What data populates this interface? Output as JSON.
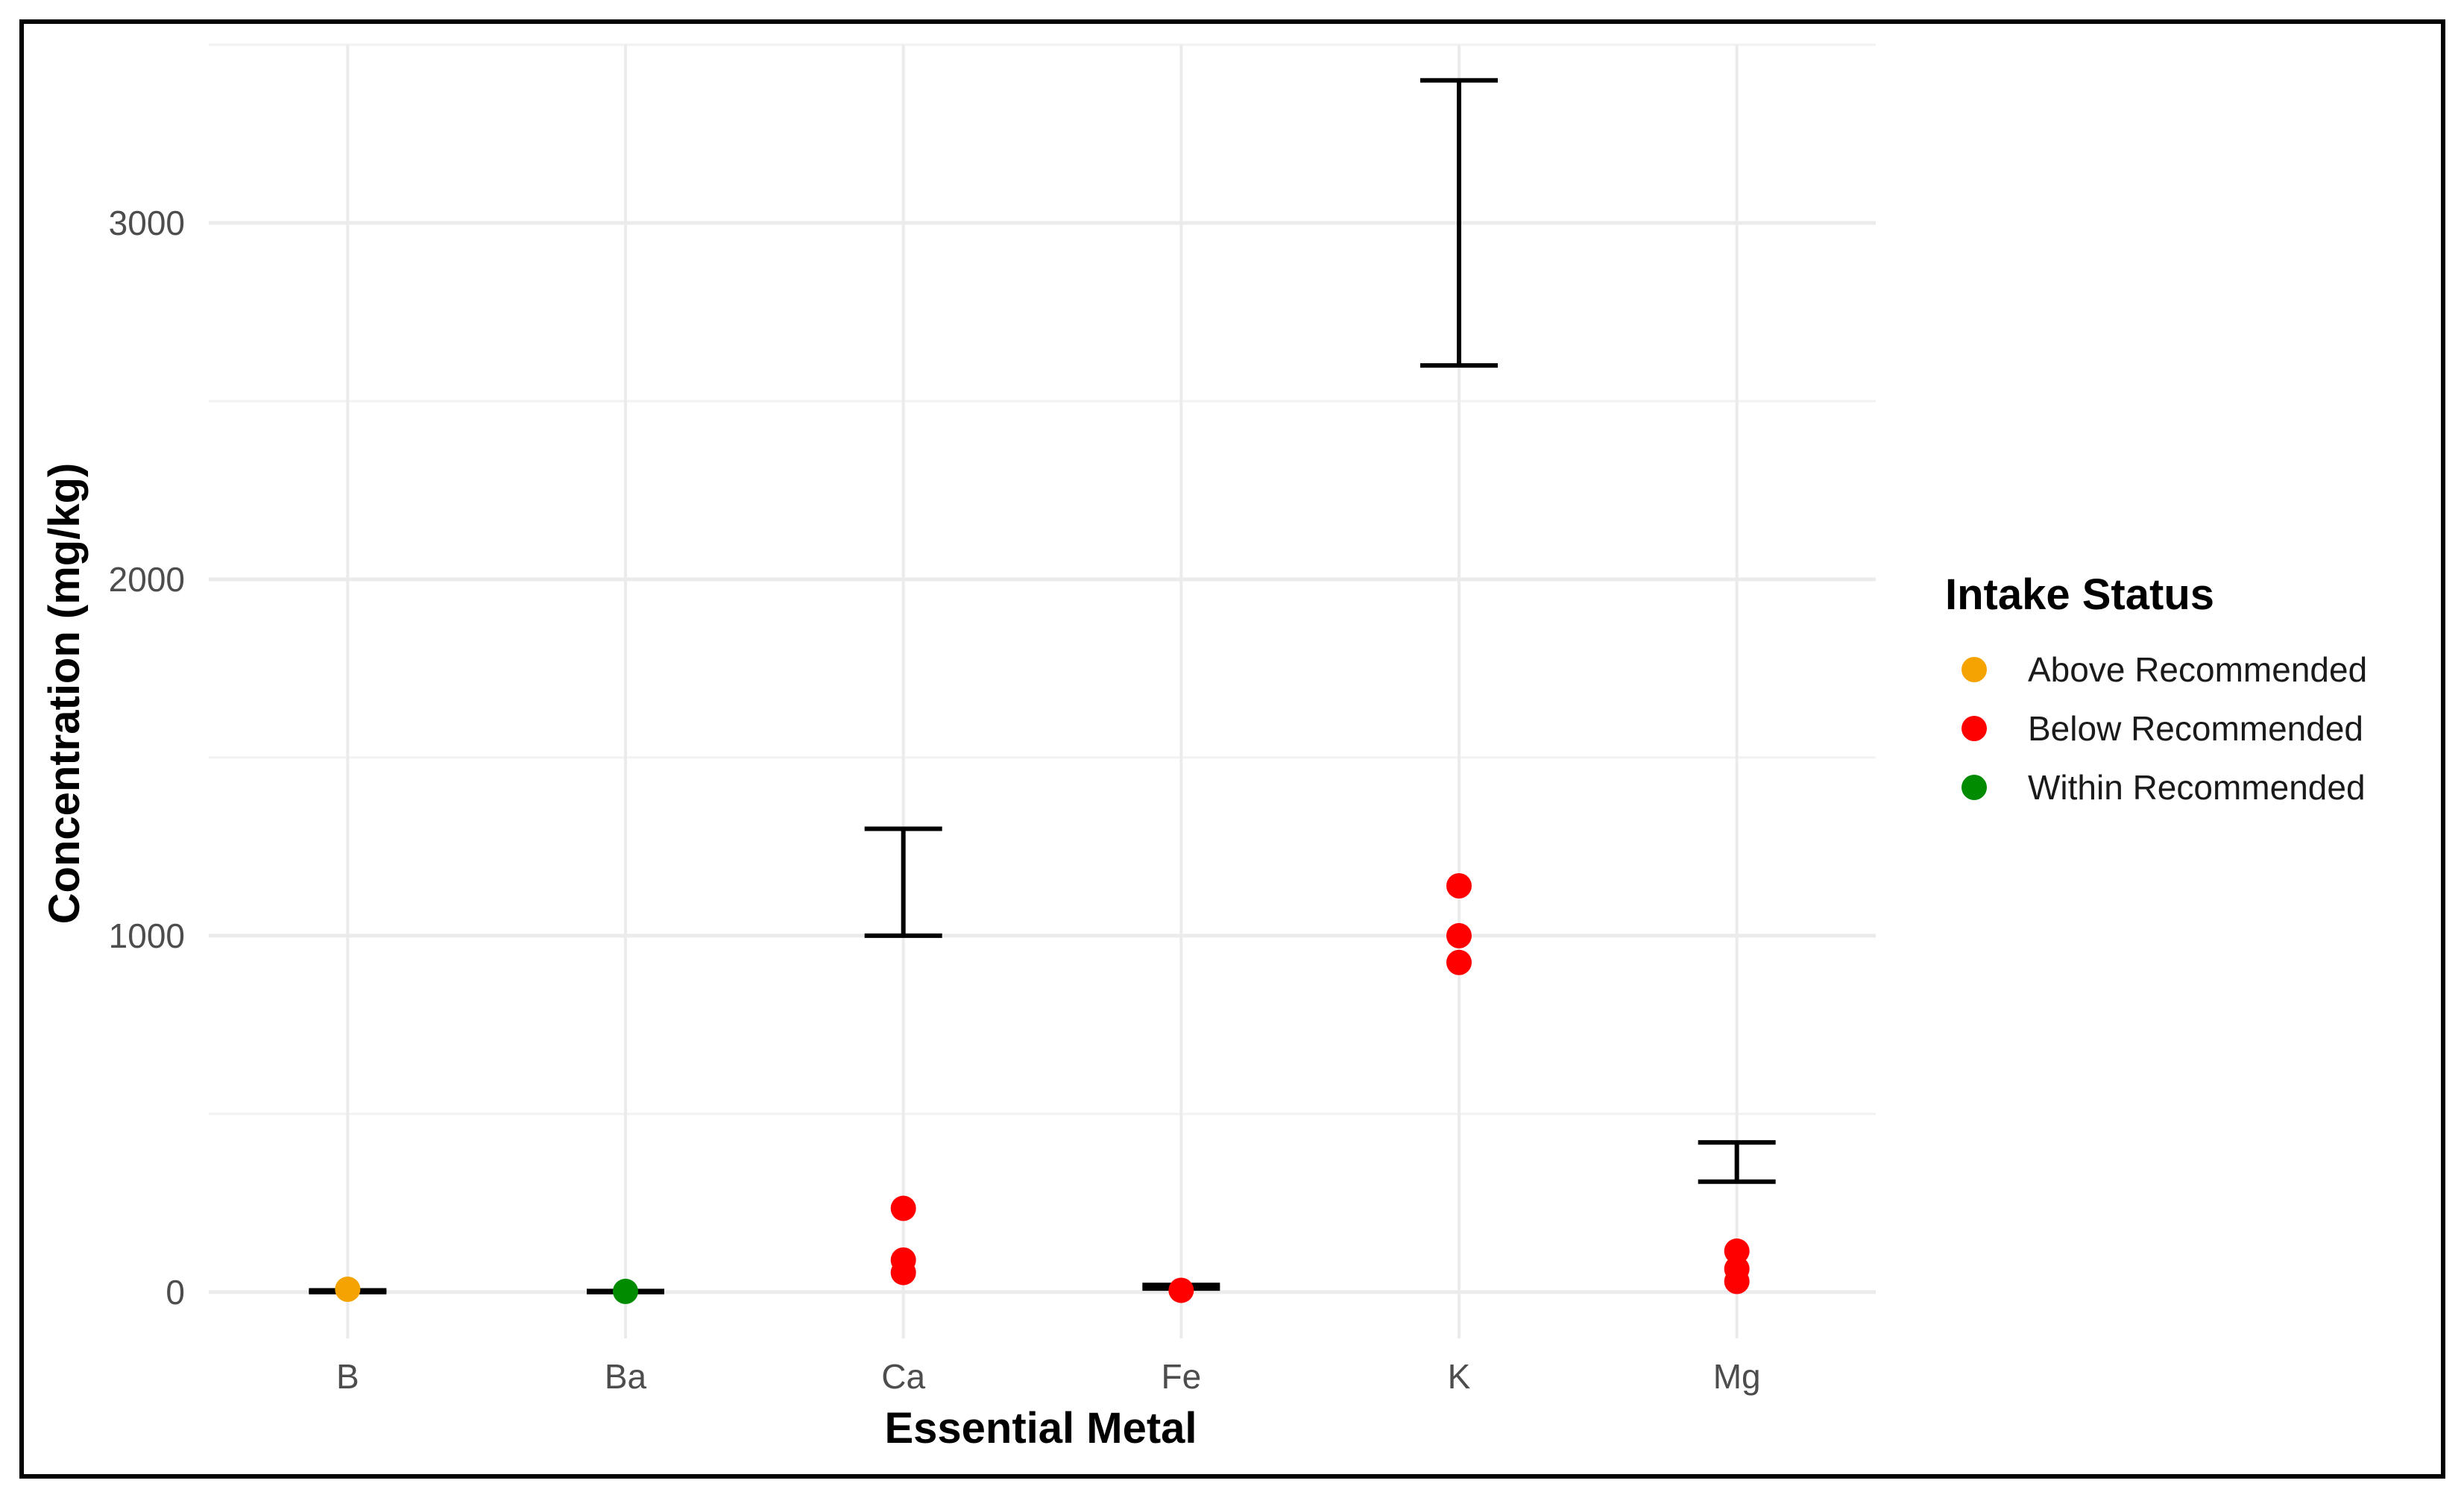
{
  "chart_data": {
    "type": "scatter",
    "title": "",
    "xlabel": "Essential Metal",
    "ylabel": "Concentration (mg/kg)",
    "categories": [
      "B",
      "Ba",
      "Ca",
      "Fe",
      "K",
      "Mg"
    ],
    "ylim": [
      -130,
      3500
    ],
    "yticks": [
      0,
      1000,
      2000,
      3000
    ],
    "grid": true,
    "legend": {
      "title": "Intake Status",
      "placement": "right",
      "entries": [
        {
          "label": "Above Recommended",
          "color": "#F5A300"
        },
        {
          "label": "Below Recommended",
          "color": "#FF0000"
        },
        {
          "label": "Within Recommended",
          "color": "#008B00"
        }
      ]
    },
    "series": [
      {
        "name": "Above Recommended",
        "color": "#F5A300",
        "points": [
          {
            "x": "B",
            "y": 8
          }
        ]
      },
      {
        "name": "Below Recommended",
        "color": "#FF0000",
        "points": [
          {
            "x": "Ca",
            "y": 235
          },
          {
            "x": "Ca",
            "y": 90
          },
          {
            "x": "Ca",
            "y": 55
          },
          {
            "x": "Fe",
            "y": 5
          },
          {
            "x": "K",
            "y": 1140
          },
          {
            "x": "K",
            "y": 1000
          },
          {
            "x": "K",
            "y": 925
          },
          {
            "x": "Mg",
            "y": 115
          },
          {
            "x": "Mg",
            "y": 65
          },
          {
            "x": "Mg",
            "y": 30
          }
        ]
      },
      {
        "name": "Within Recommended",
        "color": "#008B00",
        "points": [
          {
            "x": "Ba",
            "y": 2
          }
        ]
      }
    ],
    "recommended_ranges": [
      {
        "x": "B",
        "low": 0,
        "high": 5
      },
      {
        "x": "Ba",
        "low": 0,
        "high": 3
      },
      {
        "x": "Ca",
        "low": 1000,
        "high": 1300
      },
      {
        "x": "Fe",
        "low": 10,
        "high": 20
      },
      {
        "x": "K",
        "low": 2600,
        "high": 3400
      },
      {
        "x": "Mg",
        "low": 310,
        "high": 420
      }
    ]
  }
}
